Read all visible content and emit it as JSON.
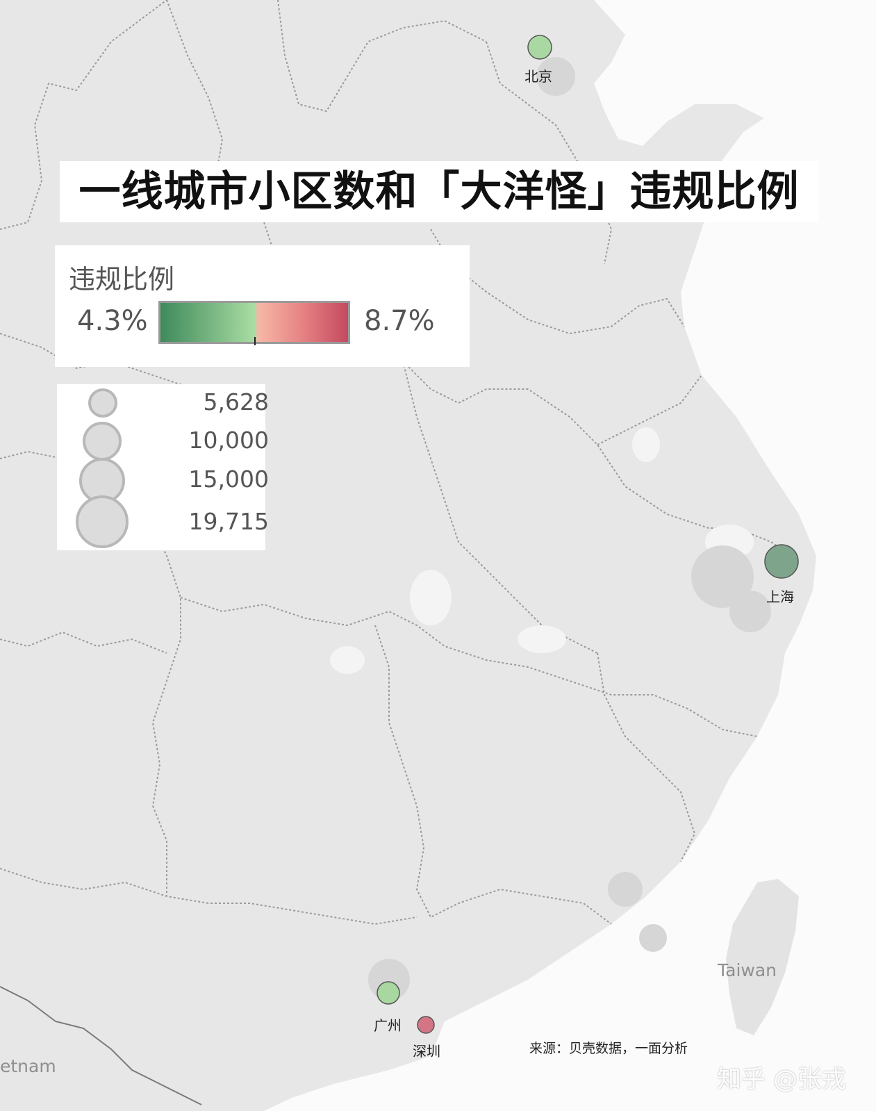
{
  "title": "一线城市小区数和「大洋怪」违规比例",
  "color_legend": {
    "title": "违规比例",
    "min_label": "4.3%",
    "max_label": "8.7%",
    "colors": [
      "#3f8a5c",
      "#a8dca2",
      "#f7b8a6",
      "#e37d80",
      "#c44960"
    ]
  },
  "size_legend": {
    "items": [
      {
        "label": "5,628",
        "value": 5628
      },
      {
        "label": "10,000",
        "value": 10000
      },
      {
        "label": "15,000",
        "value": 15000
      },
      {
        "label": "19,715",
        "value": 19715
      }
    ]
  },
  "cities": [
    {
      "name": "北京",
      "color": "#a9d8a3"
    },
    {
      "name": "上海",
      "color": "#7ea58b"
    },
    {
      "name": "广州",
      "color": "#a8d7a0"
    },
    {
      "name": "深圳",
      "color": "#d47586"
    }
  ],
  "map_labels": {
    "taiwan": "Taiwan",
    "vietnam": "etnam"
  },
  "source": "来源：贝壳数据，一面分析",
  "watermark": "知乎 @张戎"
}
